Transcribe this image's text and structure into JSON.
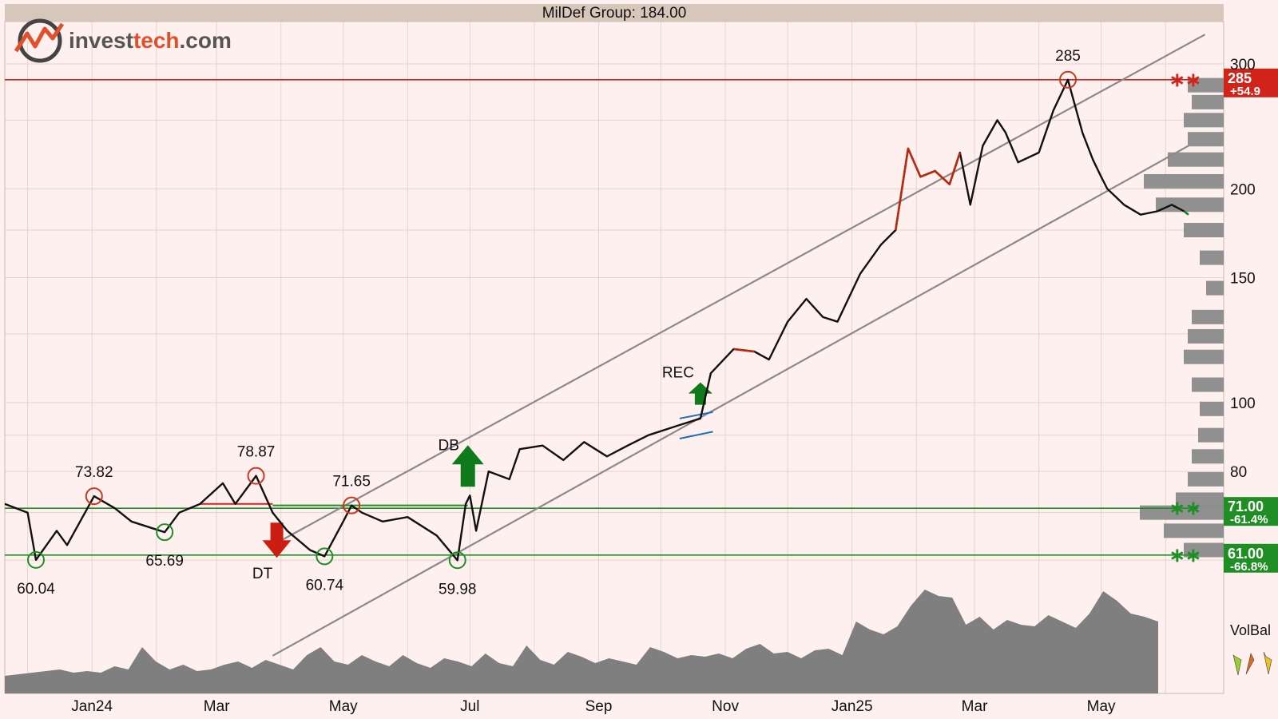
{
  "header": {
    "title": "MilDef Group: 184.00"
  },
  "logo": {
    "text_dark": "invest",
    "text_accent": "tech",
    "text_suffix": ".com"
  },
  "colors": {
    "background": "#fdf0ee",
    "header_bg": "#d7c7bb",
    "price_line": "#111111",
    "price_red": "#b8290f",
    "price_green": "#0f8a1c",
    "resistance": "#d0241a",
    "support": "#1f8f25",
    "channel": "#8a8a8a",
    "volume": "#7f7f7f",
    "grid": "#e6d4d0"
  },
  "chart_data": {
    "type": "line",
    "scale": "log",
    "ylim": [
      52,
      330
    ],
    "y_ticks": [
      "300",
      "200",
      "150",
      "100",
      "80"
    ],
    "x_ticks": [
      "Jan24",
      "Mar",
      "May",
      "Jul",
      "Sep",
      "Nov",
      "Jan25",
      "Mar",
      "May"
    ],
    "grid": true,
    "price_series": {
      "name": "MilDef Group",
      "last": 184.0,
      "x": [
        "2023-11-20",
        "2023-12-01",
        "2023-12-05",
        "2023-12-15",
        "2023-12-20",
        "2024-01-02",
        "2024-01-12",
        "2024-01-20",
        "2024-02-05",
        "2024-02-12",
        "2024-02-22",
        "2024-03-04",
        "2024-03-10",
        "2024-03-20",
        "2024-03-28",
        "2024-04-04",
        "2024-04-15",
        "2024-04-22",
        "2024-05-01",
        "2024-05-05",
        "2024-05-10",
        "2024-05-20",
        "2024-06-01",
        "2024-06-15",
        "2024-06-25",
        "2024-06-29",
        "2024-07-01",
        "2024-07-04",
        "2024-07-10",
        "2024-07-15",
        "2024-07-20",
        "2024-07-25",
        "2024-08-05",
        "2024-08-15",
        "2024-08-25",
        "2024-09-05",
        "2024-09-15",
        "2024-09-25",
        "2024-10-10",
        "2024-10-20",
        "2024-10-25",
        "2024-11-05",
        "2024-11-15",
        "2024-11-22",
        "2024-12-01",
        "2024-12-10",
        "2024-12-18",
        "2024-12-25",
        "2025-01-05",
        "2025-01-15",
        "2025-01-22",
        "2025-01-28",
        "2025-02-03",
        "2025-02-10",
        "2025-02-17",
        "2025-02-22",
        "2025-02-27",
        "2025-03-05",
        "2025-03-12",
        "2025-03-16",
        "2025-03-22",
        "2025-04-01",
        "2025-04-08",
        "2025-04-15",
        "2025-04-22",
        "2025-04-27",
        "2025-05-01",
        "2025-05-04",
        "2025-05-08",
        "2025-05-12",
        "2025-05-20",
        "2025-05-28",
        "2025-06-04",
        "2025-06-10",
        "2025-06-12"
      ],
      "values": [
        72,
        70,
        60.04,
        66,
        63,
        73.82,
        71,
        68,
        65.69,
        70,
        72,
        77,
        72,
        78.87,
        70,
        66,
        62,
        60.74,
        68,
        71.65,
        70,
        68,
        69,
        65,
        59.98,
        72,
        74,
        66,
        80,
        79,
        78,
        86,
        87,
        83,
        88,
        84,
        87,
        90,
        93,
        95,
        110,
        119,
        118,
        115,
        130,
        140,
        132,
        130,
        152,
        167,
        175,
        228,
        208,
        212,
        203,
        225,
        190,
        230,
        250,
        240,
        218,
        225,
        258,
        285,
        240,
        220,
        208,
        200,
        195,
        190,
        184,
        186,
        190,
        186,
        184
      ],
      "red_segments": [
        [
          "2024-08-20",
          "2024-08-28"
        ],
        [
          "2024-11-01",
          "2024-11-20"
        ],
        [
          "2025-01-22",
          "2025-02-22"
        ]
      ],
      "green_segments": [
        [
          "2025-06-10",
          "2025-06-12"
        ]
      ]
    },
    "point_labels": [
      {
        "x": "2023-12-05",
        "value": 60.04,
        "text": "60.04",
        "kind": "low"
      },
      {
        "x": "2024-01-02",
        "value": 73.82,
        "text": "73.82",
        "kind": "high"
      },
      {
        "x": "2024-02-05",
        "value": 65.69,
        "text": "65.69",
        "kind": "low"
      },
      {
        "x": "2024-03-20",
        "value": 78.87,
        "text": "78.87",
        "kind": "high"
      },
      {
        "x": "2024-04-22",
        "value": 60.74,
        "text": "60.74",
        "kind": "low"
      },
      {
        "x": "2024-05-05",
        "value": 71.65,
        "text": "71.65",
        "kind": "high"
      },
      {
        "x": "2024-06-25",
        "value": 59.98,
        "text": "59.98",
        "kind": "low"
      },
      {
        "x": "2025-04-15",
        "value": 285,
        "text": "285",
        "kind": "high"
      }
    ],
    "patterns": [
      {
        "label": "DT",
        "x": "2024-03-30",
        "value": 64,
        "direction": "down"
      },
      {
        "label": "DB",
        "x": "2024-06-30",
        "value": 84,
        "direction": "up"
      },
      {
        "label": "REC",
        "x": "2024-10-20",
        "value": 103,
        "direction": "up"
      }
    ],
    "levels": [
      {
        "value": 285,
        "label": "285",
        "change": "+54.9",
        "type": "resistance"
      },
      {
        "value": 71,
        "label": "71.00",
        "change": "-61.4%",
        "type": "support"
      },
      {
        "value": 61,
        "label": "61.00",
        "change": "-66.8%",
        "type": "support"
      }
    ],
    "channel": {
      "upper": [
        [
          "2024-03-28",
          63
        ],
        [
          "2025-06-20",
          330
        ]
      ],
      "lower": [
        [
          "2024-03-28",
          44
        ],
        [
          "2025-06-12",
          230
        ]
      ]
    },
    "volume_balance": {
      "label": "VolBal"
    }
  }
}
